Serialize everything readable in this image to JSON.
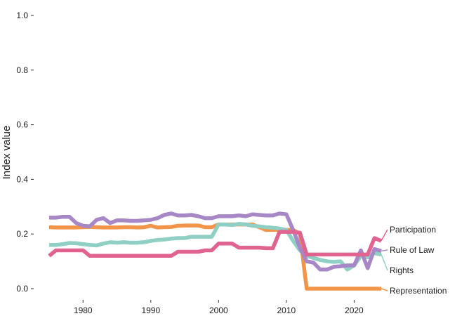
{
  "chart_data": {
    "type": "line",
    "title": "",
    "xlabel": "",
    "ylabel": "Index value",
    "xlim": [
      1975,
      2024
    ],
    "ylim": [
      0,
      1
    ],
    "x_ticks": [
      1980,
      1990,
      2000,
      2010,
      2020
    ],
    "y_ticks": [
      0,
      0.2,
      0.4,
      0.6,
      0.8,
      1.0
    ],
    "y_tick_labels": [
      "0.0",
      "0.2",
      "0.4",
      "0.6",
      "0.8",
      "1.0"
    ],
    "grid": false,
    "legend": "direct labels at right end of lines",
    "x": [
      1975,
      1976,
      1977,
      1978,
      1979,
      1980,
      1981,
      1982,
      1983,
      1984,
      1985,
      1986,
      1987,
      1988,
      1989,
      1990,
      1991,
      1992,
      1993,
      1994,
      1995,
      1996,
      1997,
      1998,
      1999,
      2000,
      2001,
      2002,
      2003,
      2004,
      2005,
      2006,
      2007,
      2008,
      2009,
      2010,
      2011,
      2012,
      2013,
      2014,
      2015,
      2016,
      2017,
      2018,
      2019,
      2020,
      2021,
      2022,
      2023,
      2024
    ],
    "series": [
      {
        "name": "Representation",
        "color": "#f0954a",
        "values": [
          0.225,
          0.224,
          0.224,
          0.224,
          0.224,
          0.225,
          0.226,
          0.225,
          0.224,
          0.224,
          0.224,
          0.225,
          0.225,
          0.224,
          0.225,
          0.23,
          0.224,
          0.225,
          0.226,
          0.23,
          0.231,
          0.231,
          0.231,
          0.225,
          0.225,
          0.235,
          0.235,
          0.235,
          0.235,
          0.235,
          0.235,
          0.225,
          0.215,
          0.215,
          0.215,
          0.215,
          0.215,
          0.2,
          0.0,
          0.0,
          0.0,
          0.0,
          0.0,
          0.0,
          0.0,
          0.0,
          0.0,
          0.0,
          0.0,
          0.0
        ]
      },
      {
        "name": "Rights",
        "color": "#8fcfc4",
        "values": [
          0.16,
          0.16,
          0.163,
          0.167,
          0.166,
          0.163,
          0.16,
          0.158,
          0.165,
          0.17,
          0.168,
          0.17,
          0.168,
          0.168,
          0.17,
          0.175,
          0.178,
          0.18,
          0.183,
          0.185,
          0.185,
          0.19,
          0.19,
          0.19,
          0.19,
          0.235,
          0.235,
          0.233,
          0.237,
          0.235,
          0.23,
          0.228,
          0.225,
          0.223,
          0.22,
          0.215,
          0.175,
          0.14,
          0.12,
          0.112,
          0.105,
          0.1,
          0.098,
          0.1,
          0.07,
          0.085,
          0.12,
          0.115,
          0.13,
          0.125
        ]
      },
      {
        "name": "Rule of Law",
        "color": "#a887c7",
        "values": [
          0.26,
          0.26,
          0.263,
          0.263,
          0.24,
          0.23,
          0.228,
          0.252,
          0.258,
          0.24,
          0.25,
          0.25,
          0.248,
          0.248,
          0.25,
          0.252,
          0.258,
          0.27,
          0.275,
          0.268,
          0.268,
          0.27,
          0.265,
          0.258,
          0.258,
          0.265,
          0.265,
          0.265,
          0.268,
          0.265,
          0.272,
          0.27,
          0.268,
          0.268,
          0.275,
          0.272,
          0.215,
          0.15,
          0.1,
          0.095,
          0.07,
          0.07,
          0.08,
          0.082,
          0.085,
          0.085,
          0.14,
          0.075,
          0.145,
          0.138
        ]
      },
      {
        "name": "Participation",
        "color": "#e0648f",
        "values": [
          0.12,
          0.14,
          0.14,
          0.14,
          0.14,
          0.14,
          0.12,
          0.12,
          0.12,
          0.12,
          0.12,
          0.12,
          0.12,
          0.12,
          0.12,
          0.12,
          0.12,
          0.12,
          0.12,
          0.135,
          0.135,
          0.135,
          0.135,
          0.14,
          0.14,
          0.165,
          0.165,
          0.165,
          0.15,
          0.15,
          0.15,
          0.15,
          0.148,
          0.148,
          0.208,
          0.208,
          0.208,
          0.205,
          0.125,
          0.125,
          0.125,
          0.125,
          0.125,
          0.125,
          0.125,
          0.125,
          0.125,
          0.125,
          0.185,
          0.175
        ]
      }
    ]
  }
}
